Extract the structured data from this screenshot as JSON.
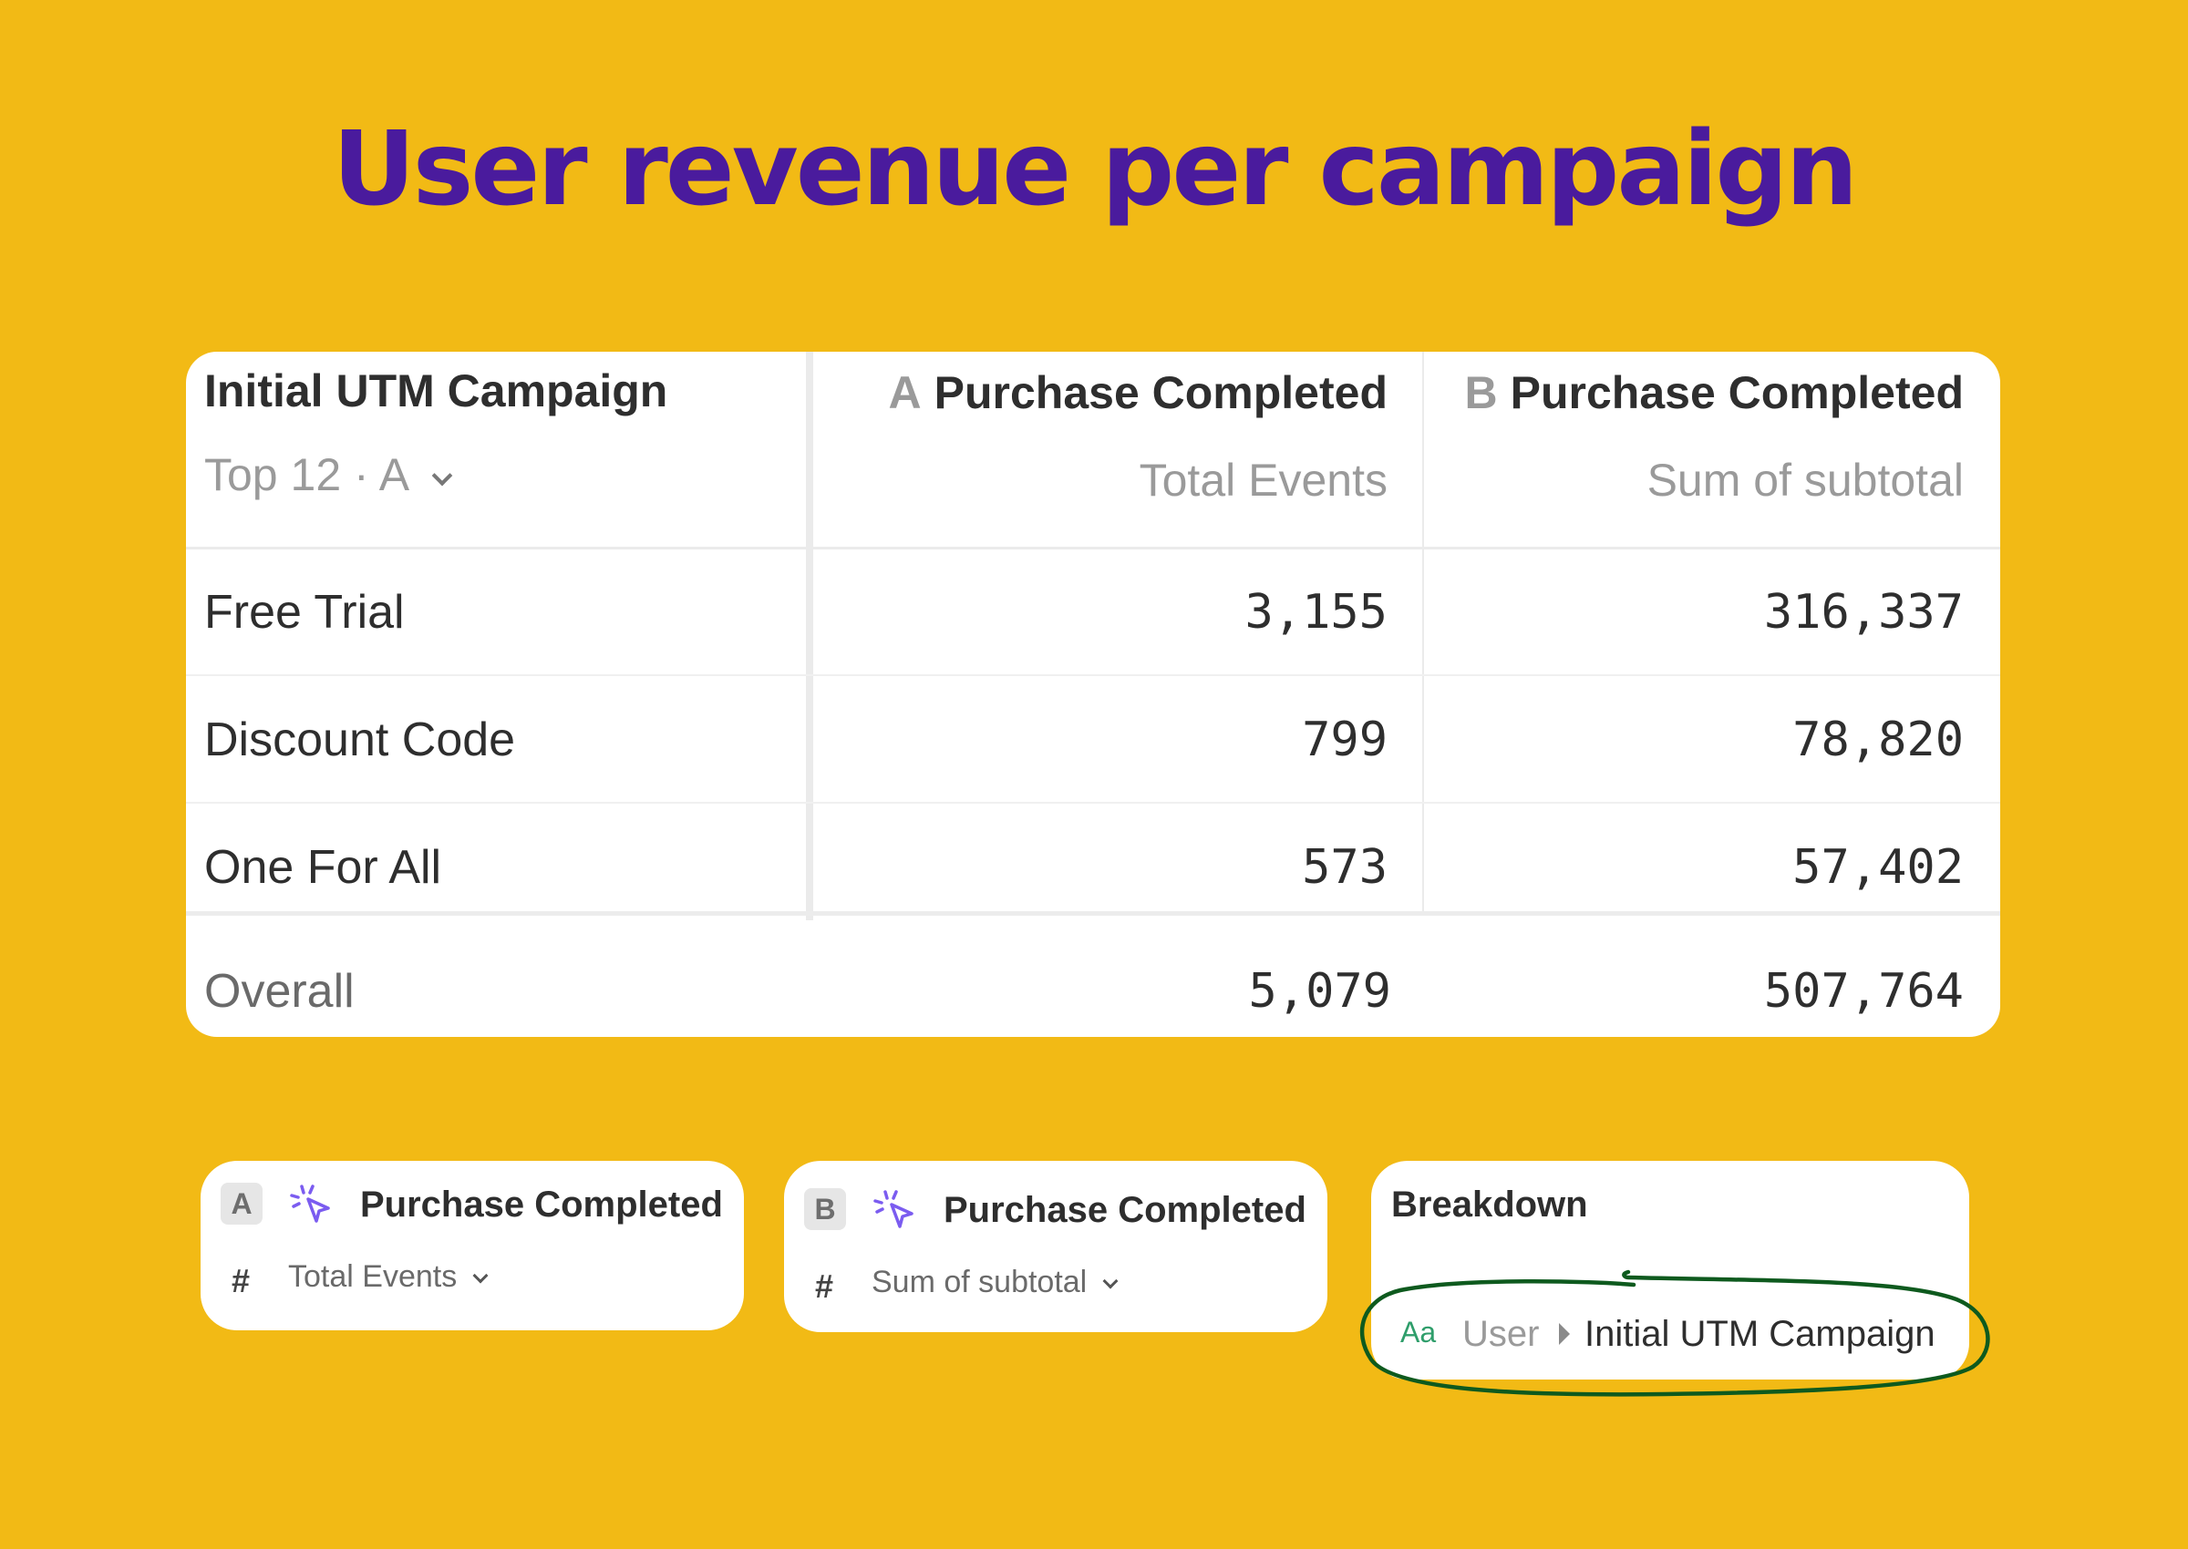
{
  "title": "User revenue per campaign",
  "table": {
    "breakdown_header": "Initial UTM Campaign",
    "breakdown_filter": "Top 12 · A",
    "columns": [
      {
        "letter": "A",
        "event": "Purchase Completed",
        "metric": "Total Events"
      },
      {
        "letter": "B",
        "event": "Purchase Completed",
        "metric": "Sum of subtotal"
      }
    ],
    "rows": [
      {
        "label": "Free Trial",
        "a": "3,155",
        "b": "316,337"
      },
      {
        "label": "Discount Code",
        "a": "799",
        "b": "78,820"
      },
      {
        "label": "One For All",
        "a": "573",
        "b": "57,402"
      }
    ],
    "overall": {
      "label": "Overall",
      "a": "5,079",
      "b": "507,764"
    }
  },
  "cards": {
    "a": {
      "letter": "A",
      "event": "Purchase Completed",
      "metric": "Total Events"
    },
    "b": {
      "letter": "B",
      "event": "Purchase Completed",
      "metric": "Sum of subtotal"
    },
    "breakdown": {
      "title": "Breakdown",
      "type_icon": "Aa",
      "entity": "User",
      "property": "Initial UTM Campaign"
    }
  },
  "colors": {
    "background": "#F2BA15",
    "title": "#4A1B9D",
    "annotation": "#0E5A1E",
    "event_icon": "#7B5CF0"
  },
  "icons": [
    "chevron-down-icon",
    "cursor-click-icon",
    "hash-icon",
    "caret-right-icon",
    "text-type-icon"
  ]
}
